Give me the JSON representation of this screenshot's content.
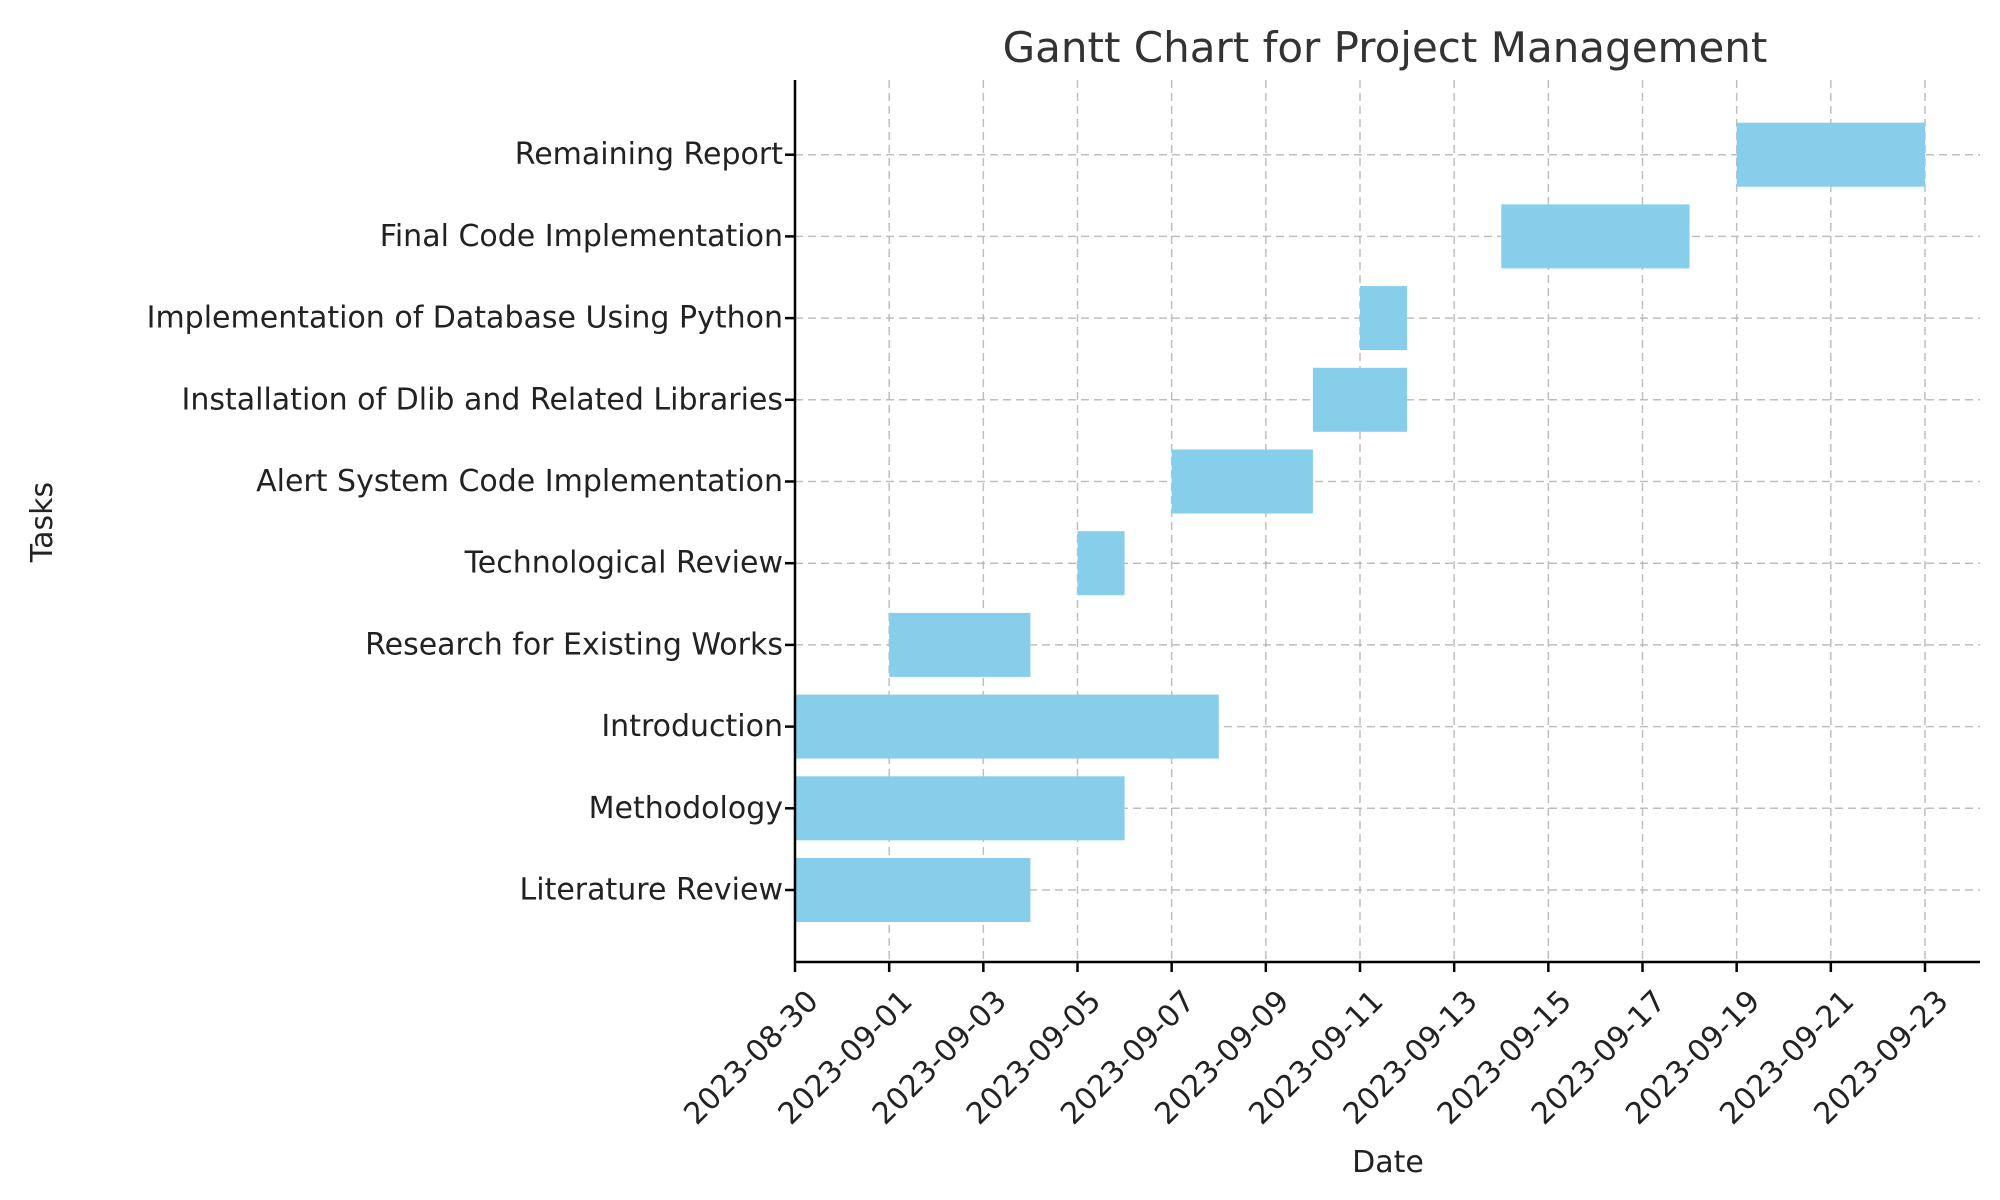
{
  "chart_data": {
    "type": "gantt",
    "title": "Gantt Chart for Project Management",
    "xlabel": "Date",
    "ylabel": "Tasks",
    "xlim": [
      "2023-08-30",
      "2023-09-23"
    ],
    "x_ticks": [
      "2023-08-30",
      "2023-09-01",
      "2023-09-03",
      "2023-09-05",
      "2023-09-07",
      "2023-09-09",
      "2023-09-11",
      "2023-09-13",
      "2023-09-15",
      "2023-09-17",
      "2023-09-19",
      "2023-09-21",
      "2023-09-23"
    ],
    "grid": true,
    "bar_color": "#87ceeb",
    "tasks": [
      {
        "name": "Literature Review",
        "start": "2023-08-30",
        "end": "2023-09-04"
      },
      {
        "name": "Methodology",
        "start": "2023-08-30",
        "end": "2023-09-06"
      },
      {
        "name": "Introduction",
        "start": "2023-08-30",
        "end": "2023-09-08"
      },
      {
        "name": "Research for Existing Works",
        "start": "2023-09-01",
        "end": "2023-09-04"
      },
      {
        "name": "Technological Review",
        "start": "2023-09-05",
        "end": "2023-09-06"
      },
      {
        "name": "Alert System Code Implementation",
        "start": "2023-09-07",
        "end": "2023-09-10"
      },
      {
        "name": "Installation of Dlib and Related Libraries",
        "start": "2023-09-10",
        "end": "2023-09-12"
      },
      {
        "name": "Implementation of Database Using Python",
        "start": "2023-09-11",
        "end": "2023-09-12"
      },
      {
        "name": "Final Code Implementation",
        "start": "2023-09-14",
        "end": "2023-09-18"
      },
      {
        "name": "Remaining Report",
        "start": "2023-09-19",
        "end": "2023-09-23"
      }
    ]
  }
}
